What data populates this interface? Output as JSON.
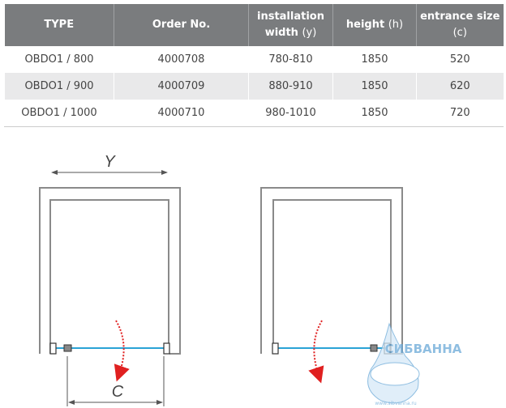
{
  "table": {
    "headers": [
      {
        "main": "TYPE",
        "unit": ""
      },
      {
        "main": "Order No.",
        "unit": ""
      },
      {
        "main": "installation width",
        "unit": "(y)"
      },
      {
        "main": "height",
        "unit": "(h)"
      },
      {
        "main": "entrance size",
        "unit": "(c)"
      }
    ],
    "rows": [
      [
        "OBDO1 / 800",
        "4000708",
        "780-810",
        "1850",
        "520"
      ],
      [
        "OBDO1 / 900",
        "4000709",
        "880-910",
        "1850",
        "620"
      ],
      [
        "OBDO1 / 1000",
        "4000710",
        "980-1010",
        "1850",
        "720"
      ]
    ]
  },
  "diagram": {
    "label_width": "Y",
    "label_entrance": "C",
    "glass_color": "#2aa3d6",
    "arrow_color": "#e02020"
  },
  "watermark": {
    "brand": "СИБВАННА",
    "url": "www.sibvanna.ru"
  }
}
